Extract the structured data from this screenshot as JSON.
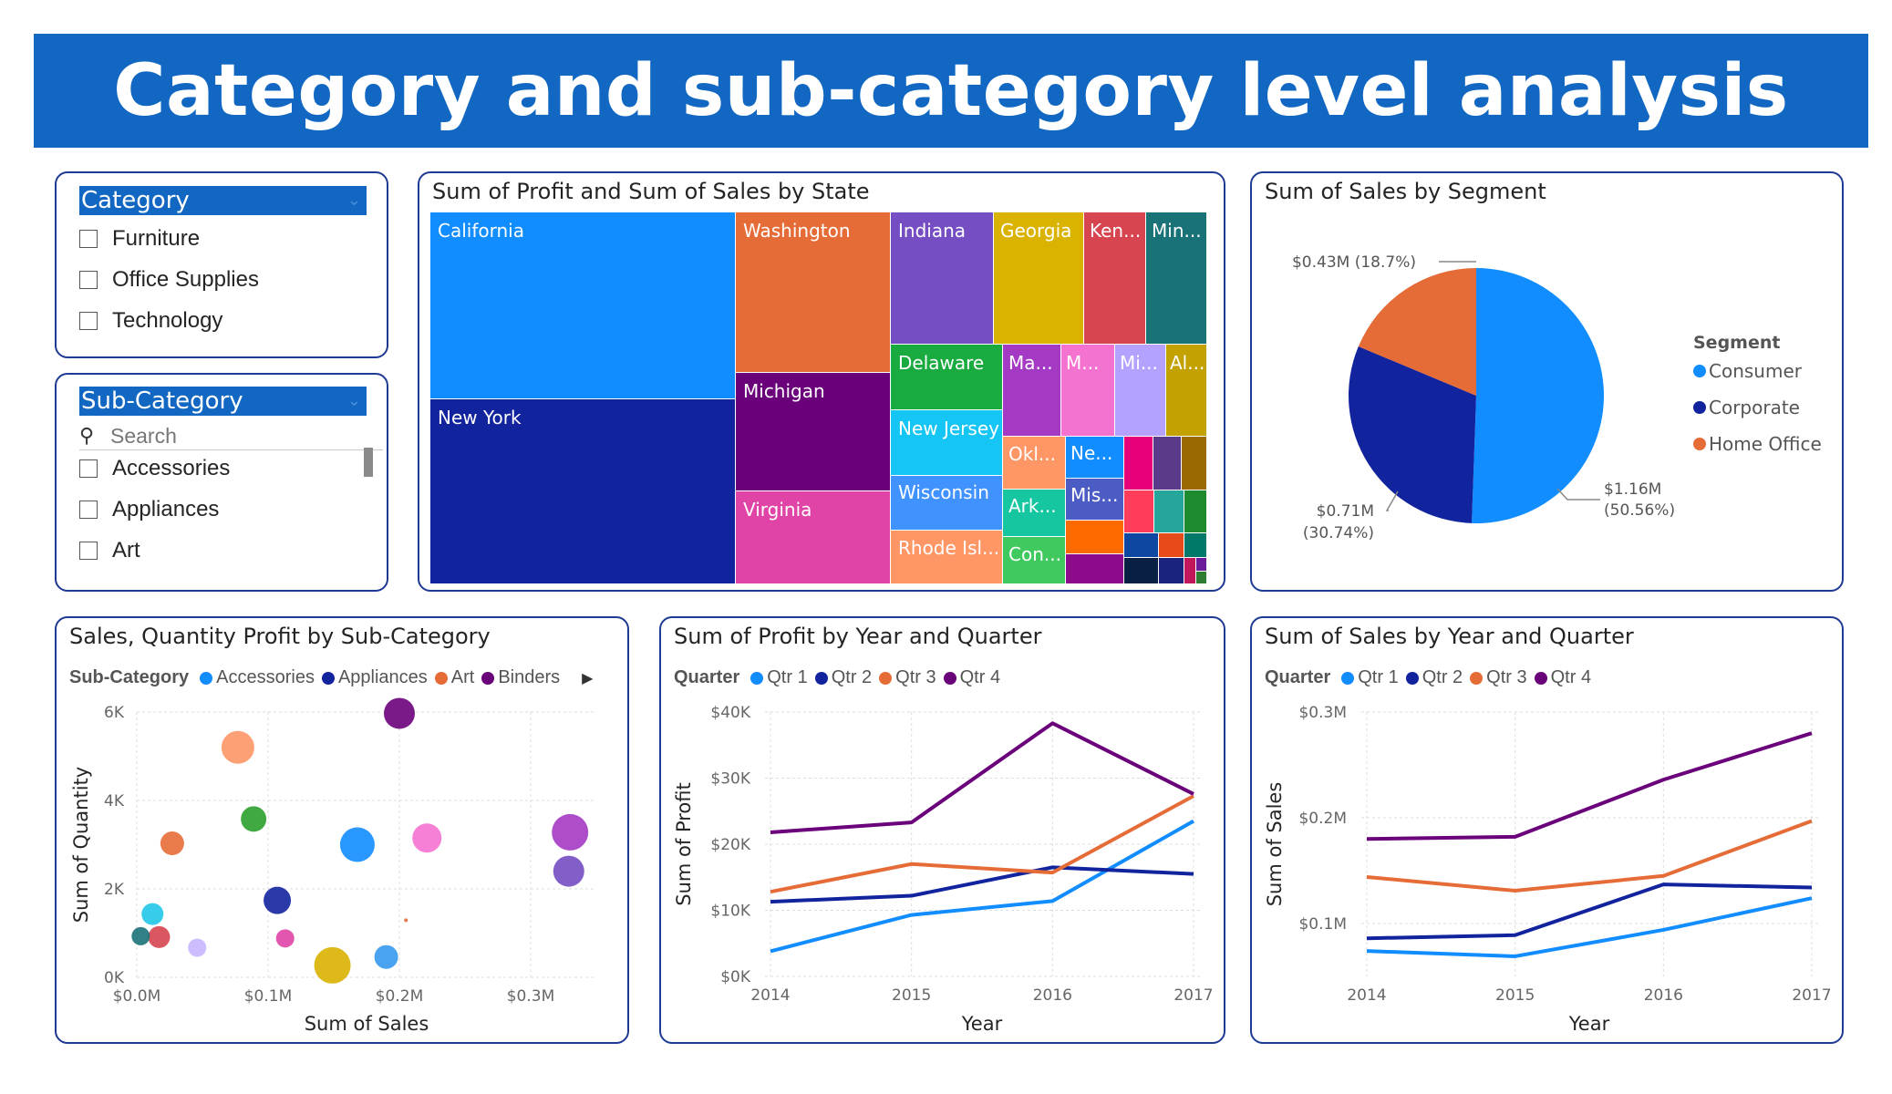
{
  "title": "Category and sub-category level analysis",
  "category_slicer": {
    "header": "Category",
    "items": [
      "Furniture",
      "Office Supplies",
      "Technology"
    ]
  },
  "subcategory_slicer": {
    "header": "Sub-Category",
    "search_placeholder": "Search",
    "items": [
      "Accessories",
      "Appliances",
      "Art"
    ]
  },
  "treemap": {
    "title": "Sum of Profit and Sum of Sales by State",
    "labels": {
      "california": "California",
      "new_york": "New York",
      "washington": "Washington",
      "michigan": "Michigan",
      "virginia": "Virginia",
      "indiana": "Indiana",
      "georgia": "Georgia",
      "kentucky": "Ken...",
      "minnesota": "Min...",
      "delaware": "Delaware",
      "new_jersey": "New Jersey",
      "wisconsin": "Wisconsin",
      "rhode_island": "Rhode Isl...",
      "massachusetts": "Ma...",
      "m2": "M...",
      "mi": "Mi...",
      "alabama": "Al...",
      "oklahoma": "Okl...",
      "nebraska": "Ne...",
      "arkansas": "Ark...",
      "mississippi": "Mis...",
      "connecticut": "Con..."
    }
  },
  "segment": {
    "title": "Sum of Sales by Segment",
    "legend_title": "Segment",
    "items": [
      {
        "name": "Consumer",
        "color": "#118dff",
        "label1": "$1.16M",
        "label2": "(50.56%)"
      },
      {
        "name": "Corporate",
        "color": "#12239e",
        "label1": "$0.71M",
        "label2": "(30.74%)"
      },
      {
        "name": "Home Office",
        "color": "#e66c37",
        "label1": "$0.43M (18.7%)",
        "label2": ""
      }
    ]
  },
  "chart_data": [
    {
      "type": "scatter",
      "title": "Sales, Quantity Profit by Sub-Category",
      "legend_title": "Sub-Category",
      "legend": [
        {
          "name": "Accessories",
          "color": "#118dff"
        },
        {
          "name": "Appliances",
          "color": "#12239e"
        },
        {
          "name": "Art",
          "color": "#e66c37"
        },
        {
          "name": "Binders",
          "color": "#6b007b"
        }
      ],
      "xlabel": "Sum of Sales",
      "ylabel": "Sum of Quantity",
      "xlim": [
        0,
        0.35
      ],
      "ylim": [
        0,
        6000
      ],
      "xticks": [
        "$0.0M",
        "$0.1M",
        "$0.2M",
        "$0.3M"
      ],
      "yticks": [
        "0K",
        "2K",
        "4K",
        "6K"
      ],
      "points": [
        {
          "x": 0.2,
          "y": 5970,
          "size": 17,
          "color": "#6b007b"
        },
        {
          "x": 0.077,
          "y": 5200,
          "size": 18,
          "color": "#fe9666"
        },
        {
          "x": 0.089,
          "y": 3580,
          "size": 14,
          "color": "#2ca02c"
        },
        {
          "x": 0.027,
          "y": 3030,
          "size": 13,
          "color": "#e66c37"
        },
        {
          "x": 0.168,
          "y": 3000,
          "size": 19,
          "color": "#118dff"
        },
        {
          "x": 0.221,
          "y": 3150,
          "size": 16,
          "color": "#f472d0"
        },
        {
          "x": 0.33,
          "y": 3280,
          "size": 20,
          "color": "#a43ac4"
        },
        {
          "x": 0.329,
          "y": 2400,
          "size": 17,
          "color": "#744ec2"
        },
        {
          "x": 0.107,
          "y": 1740,
          "size": 15,
          "color": "#12239e"
        },
        {
          "x": 0.012,
          "y": 1430,
          "size": 12,
          "color": "#20c7e8"
        },
        {
          "x": 0.017,
          "y": 910,
          "size": 12,
          "color": "#d64550"
        },
        {
          "x": 0.003,
          "y": 930,
          "size": 10,
          "color": "#197278"
        },
        {
          "x": 0.046,
          "y": 670,
          "size": 10,
          "color": "#c8b6ff"
        },
        {
          "x": 0.113,
          "y": 880,
          "size": 10,
          "color": "#e044a7"
        },
        {
          "x": 0.149,
          "y": 270,
          "size": 20,
          "color": "#d9b300"
        },
        {
          "x": 0.19,
          "y": 460,
          "size": 13,
          "color": "#3599f0"
        },
        {
          "x": 0.205,
          "y": 1290,
          "size": 2,
          "color": "#e66c37"
        }
      ]
    },
    {
      "type": "line",
      "title": "Sum of Profit by Year and Quarter",
      "legend_title": "Quarter",
      "xlabel": "Year",
      "ylabel": "Sum of Profit",
      "x": [
        "2014",
        "2015",
        "2016",
        "2017"
      ],
      "ylim": [
        0,
        40000
      ],
      "yticks": [
        "$0K",
        "$10K",
        "$20K",
        "$30K",
        "$40K"
      ],
      "series": [
        {
          "name": "Qtr 1",
          "color": "#118dff",
          "values": [
            3800,
            9300,
            11400,
            23500
          ]
        },
        {
          "name": "Qtr 2",
          "color": "#12239e",
          "values": [
            11300,
            12200,
            16500,
            15500
          ]
        },
        {
          "name": "Qtr 3",
          "color": "#e66c37",
          "values": [
            12800,
            17000,
            15700,
            27300
          ]
        },
        {
          "name": "Qtr 4",
          "color": "#6b007b",
          "values": [
            21800,
            23300,
            38300,
            27600
          ]
        }
      ]
    },
    {
      "type": "line",
      "title": "Sum of Sales by Year and Quarter",
      "legend_title": "Quarter",
      "xlabel": "Year",
      "ylabel": "Sum of Sales",
      "x": [
        "2014",
        "2015",
        "2016",
        "2017"
      ],
      "ylim": [
        0.05,
        0.3
      ],
      "yticks": [
        "$0.1M",
        "$0.2M",
        "$0.3M"
      ],
      "ytick_values": [
        0.1,
        0.2,
        0.3
      ],
      "series": [
        {
          "name": "Qtr 1",
          "color": "#118dff",
          "values": [
            0.074,
            0.069,
            0.094,
            0.124
          ]
        },
        {
          "name": "Qtr 2",
          "color": "#12239e",
          "values": [
            0.086,
            0.089,
            0.137,
            0.134
          ]
        },
        {
          "name": "Qtr 3",
          "color": "#e66c37",
          "values": [
            0.144,
            0.131,
            0.145,
            0.197
          ]
        },
        {
          "name": "Qtr 4",
          "color": "#6b007b",
          "values": [
            0.18,
            0.182,
            0.236,
            0.28
          ]
        }
      ]
    }
  ]
}
